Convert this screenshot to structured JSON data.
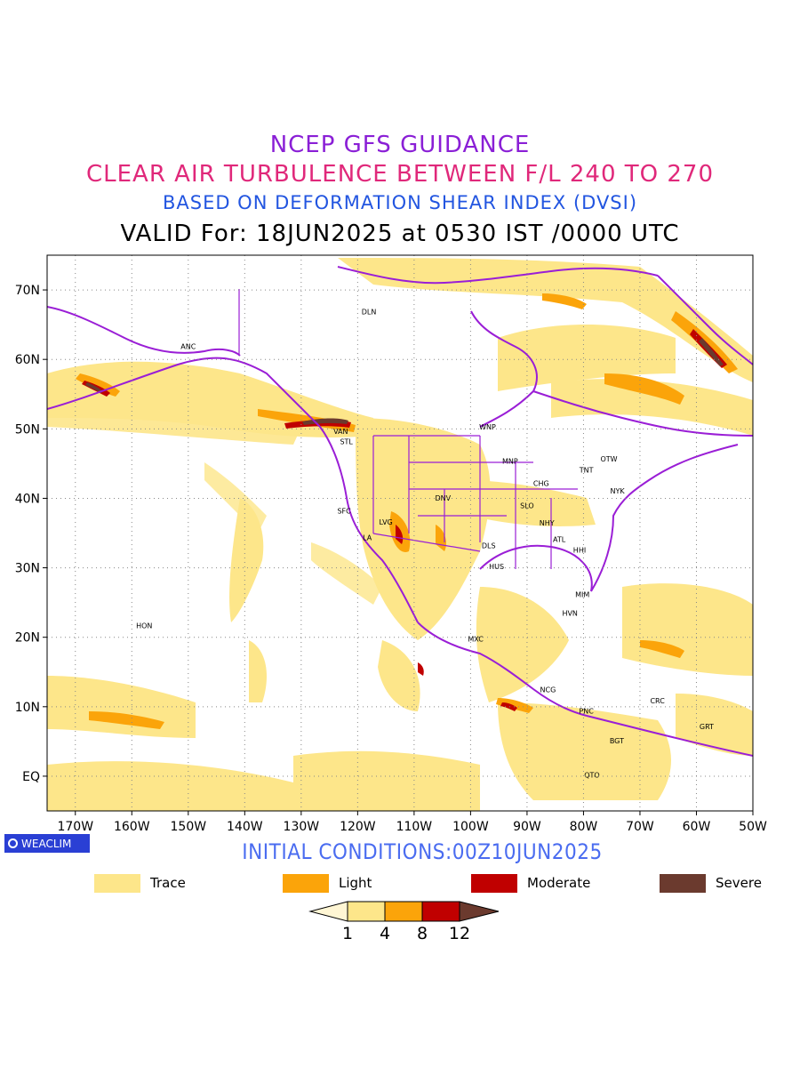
{
  "titles": {
    "line1": "NCEP GFS GUIDANCE",
    "line2": "CLEAR AIR TURBULENCE BETWEEN F/L 240 TO 270",
    "line3": "BASED ON DEFORMATION SHEAR INDEX (DVSI)",
    "line4": "VALID For: 18JUN2025 at 0530 IST /0000 UTC"
  },
  "map": {
    "lat_labels": [
      "70N",
      "60N",
      "50N",
      "40N",
      "30N",
      "20N",
      "10N",
      "EQ"
    ],
    "lon_labels": [
      "170W",
      "160W",
      "150W",
      "140W",
      "130W",
      "120W",
      "110W",
      "100W",
      "90W",
      "80W",
      "70W",
      "60W",
      "50W"
    ],
    "stations": [
      "DLN",
      "ANC",
      "VAN",
      "STL",
      "WNP",
      "OTW",
      "MNP",
      "TNT",
      "CHG",
      "NYK",
      "DNV",
      "SFC",
      "LVG",
      "SLO",
      "NHY",
      "ATL",
      "LA",
      "DLS",
      "HHI",
      "HUS",
      "MIM",
      "HVN",
      "MXC",
      "HON",
      "NCG",
      "CRC",
      "PNC",
      "GRT",
      "BGT",
      "QTO"
    ]
  },
  "brand": {
    "label": "WEACLIM",
    "icon": "circle-logo-icon"
  },
  "initial_conditions": "INITIAL CONDITIONS:00Z10JUN2025",
  "legend": [
    {
      "label": "Trace",
      "color": "#fde68a"
    },
    {
      "label": "Light",
      "color": "#fba40a"
    },
    {
      "label": "Moderate",
      "color": "#c00000"
    },
    {
      "label": "Severe",
      "color": "#6b3a2e"
    }
  ],
  "colorbar": {
    "ticks": [
      "1",
      "4",
      "8",
      "12"
    ],
    "colors": [
      "#fff6d4",
      "#fde68a",
      "#fba40a",
      "#c00000",
      "#6b3a2e"
    ]
  }
}
